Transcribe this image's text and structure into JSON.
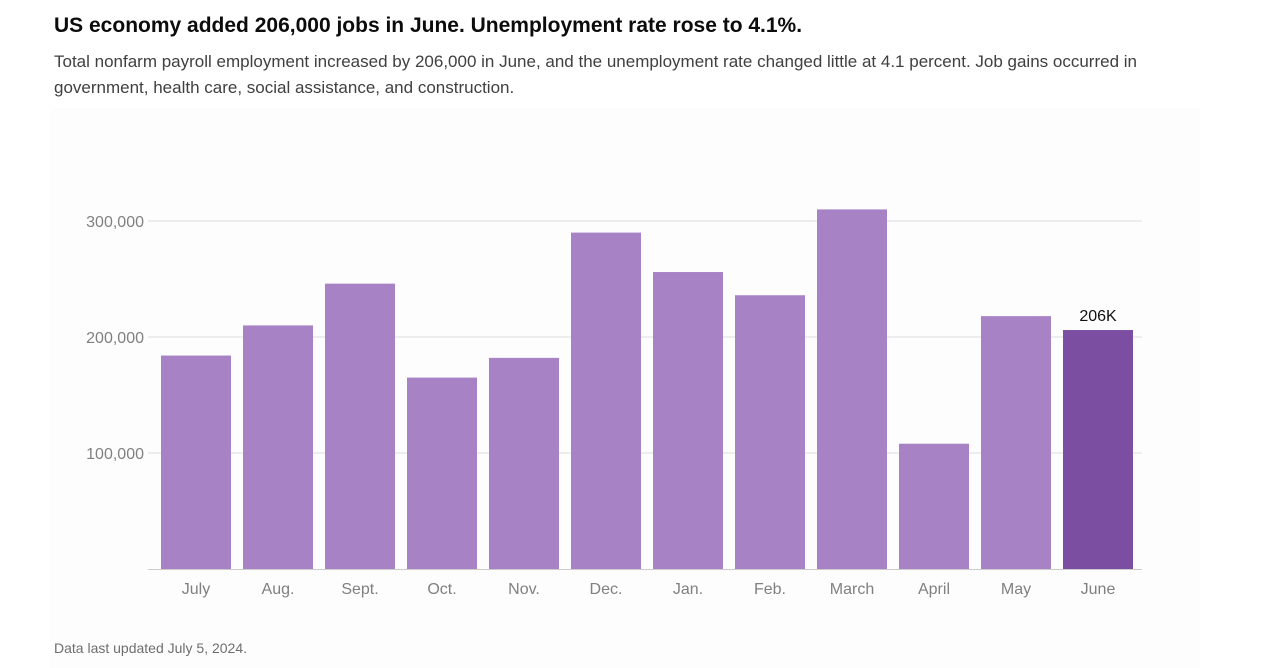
{
  "headline": "US economy added 206,000 jobs in June. Unemployment rate rose to 4.1%.",
  "dek": "Total nonfarm payroll employment increased by 206,000 in June, and the unemployment rate changed little at 4.1 percent. Job gains occurred in government, health care, social assistance, and construction.",
  "footnote": "Data last updated July 5, 2024.",
  "colors": {
    "bar": "#a783c5",
    "highlight_bar": "#7b4ea2",
    "grid": "#dddddd",
    "axis_text": "#808080"
  },
  "chart_data": {
    "type": "bar",
    "categories": [
      "July",
      "Aug.",
      "Sept.",
      "Oct.",
      "Nov.",
      "Dec.",
      "Jan.",
      "Feb.",
      "March",
      "April",
      "May",
      "June"
    ],
    "values": [
      184000,
      210000,
      246000,
      165000,
      182000,
      290000,
      256000,
      236000,
      310000,
      108000,
      218000,
      206000
    ],
    "highlight_index": 11,
    "annotations": [
      {
        "category": "June",
        "label": "206K"
      }
    ],
    "yticks": [
      100000,
      200000,
      300000
    ],
    "ytick_labels": [
      "100,000",
      "200,000",
      "300,000"
    ],
    "ylim": [
      0,
      310000
    ],
    "grid": true,
    "legend": "none",
    "title": "",
    "xlabel": "",
    "ylabel": ""
  }
}
